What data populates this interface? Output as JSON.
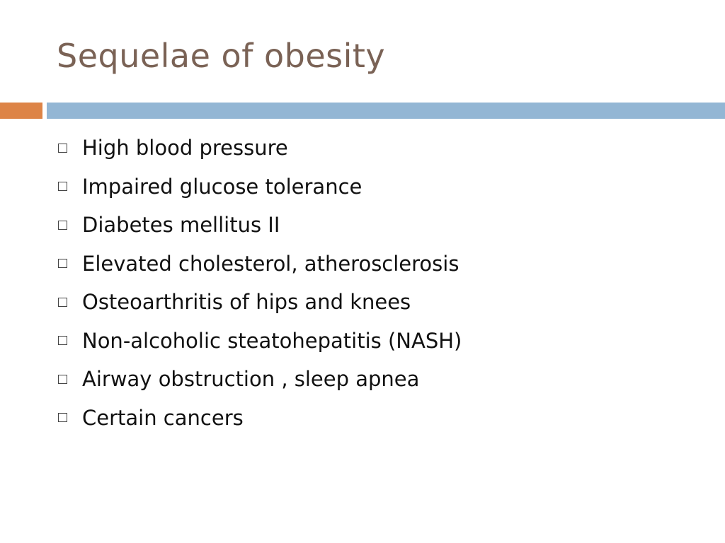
{
  "title": "Sequelae of obesity",
  "bullets": [
    "High blood pressure",
    "Impaired glucose tolerance",
    "Diabetes mellitus II",
    "Elevated cholesterol, atherosclerosis",
    "Osteoarthritis of hips and knees",
    "Non-alcoholic steatohepatitis (NASH)",
    "Airway obstruction , sleep apnea",
    "Certain cancers"
  ]
}
